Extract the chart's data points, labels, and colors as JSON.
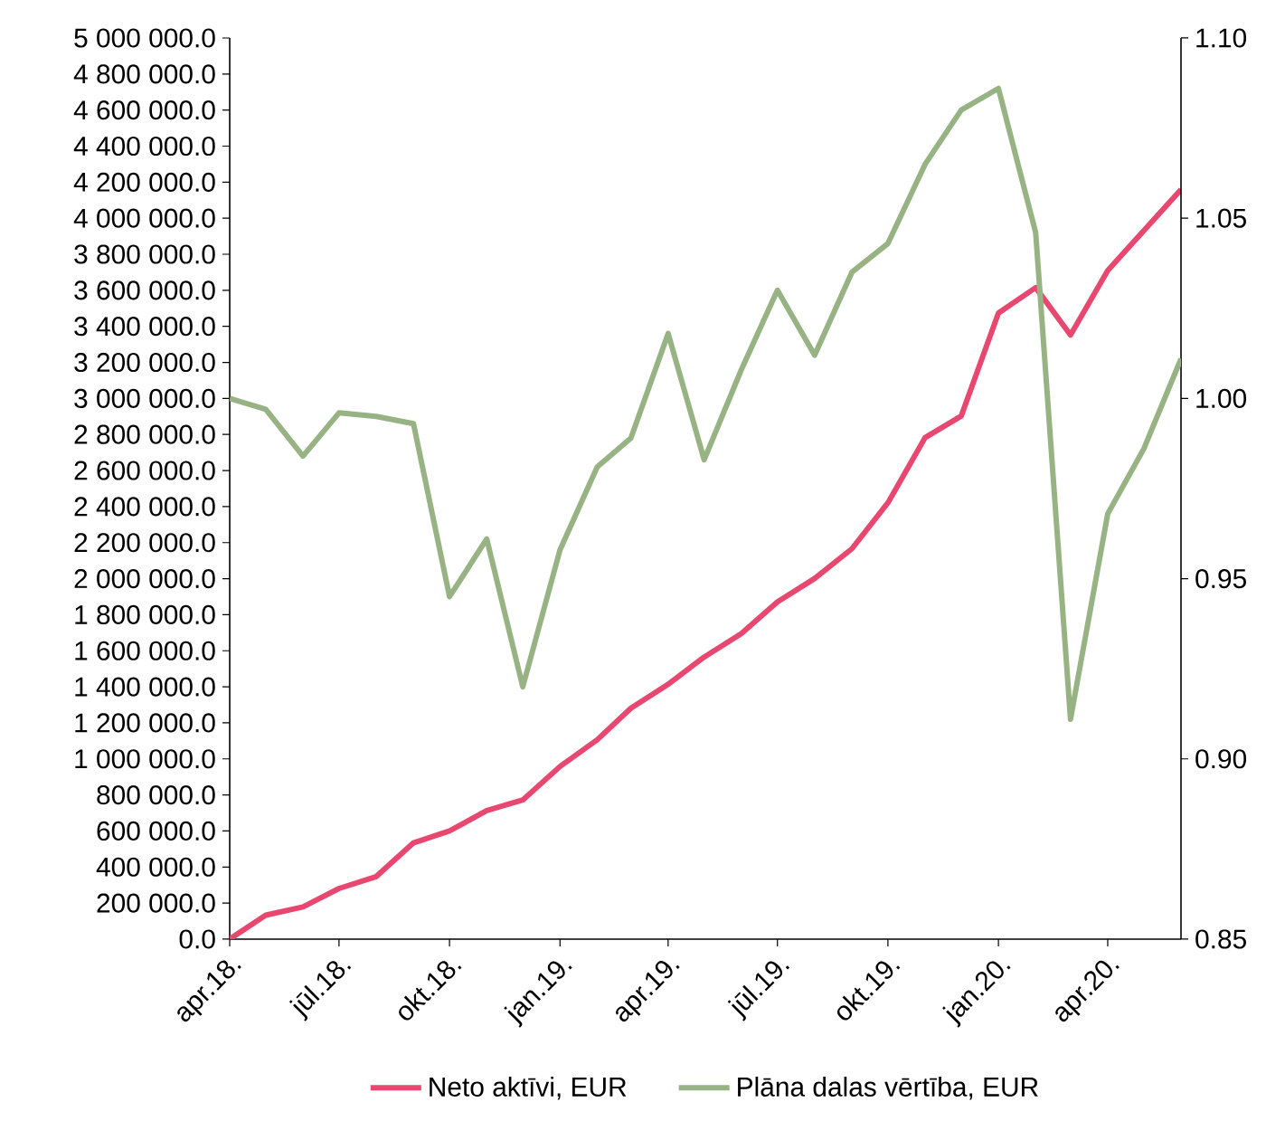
{
  "chart_data": {
    "type": "line",
    "x": [
      "2018-04",
      "2018-05",
      "2018-06",
      "2018-07",
      "2018-08",
      "2018-09",
      "2018-10",
      "2018-11",
      "2018-12",
      "2019-01",
      "2019-02",
      "2019-03",
      "2019-04",
      "2019-05",
      "2019-06",
      "2019-07",
      "2019-08",
      "2019-09",
      "2019-10",
      "2019-11",
      "2019-12",
      "2020-01",
      "2020-02",
      "2020-03",
      "2020-04",
      "2020-05",
      "2020-06"
    ],
    "series": [
      {
        "name": "Neto aktīvi, EUR",
        "color": "#e8476f",
        "values": [
          0,
          133000,
          179000,
          281000,
          347000,
          534000,
          600000,
          713000,
          772000,
          958000,
          1106000,
          1281000,
          1414000,
          1565000,
          1695000,
          1871000,
          2001000,
          2166000,
          2421000,
          2783000,
          2902000,
          3474000,
          3615000,
          3352000,
          3710000,
          3931000,
          4159000
        ]
      },
      {
        "name": "Plāna dalas vērtība, EUR",
        "color": "#98b383",
        "axis": "y2",
        "values": [
          1.0,
          0.997,
          0.984,
          0.996,
          0.995,
          0.993,
          0.945,
          0.961,
          0.92,
          0.958,
          0.981,
          0.989,
          1.018,
          0.983,
          1.008,
          1.03,
          1.012,
          1.035,
          1.043,
          1.065,
          1.08,
          1.086,
          1.046,
          0.911,
          0.968,
          0.986,
          1.011
        ]
      }
    ],
    "xlim": [
      "2018-04",
      "2020-06"
    ],
    "xticks": [
      {
        "value": "2018-04",
        "label": "apr.18."
      },
      {
        "value": "2018-07",
        "label": "jūl.18."
      },
      {
        "value": "2018-10",
        "label": "okt.18."
      },
      {
        "value": "2019-01",
        "label": "jan.19."
      },
      {
        "value": "2019-04",
        "label": "apr.19."
      },
      {
        "value": "2019-07",
        "label": "jūl.19."
      },
      {
        "value": "2019-10",
        "label": "okt.19."
      },
      {
        "value": "2020-01",
        "label": "jan.20."
      },
      {
        "value": "2020-04",
        "label": "apr.20."
      }
    ],
    "ylim": [
      0,
      5000000
    ],
    "yticks": [
      {
        "value": 0,
        "label": "0.0"
      },
      {
        "value": 200000,
        "label": "200 000.0"
      },
      {
        "value": 400000,
        "label": "400 000.0"
      },
      {
        "value": 600000,
        "label": "600 000.0"
      },
      {
        "value": 800000,
        "label": "800 000.0"
      },
      {
        "value": 1000000,
        "label": "1 000 000.0"
      },
      {
        "value": 1200000,
        "label": "1 200 000.0"
      },
      {
        "value": 1400000,
        "label": "1 400 000.0"
      },
      {
        "value": 1600000,
        "label": "1 600 000.0"
      },
      {
        "value": 1800000,
        "label": "1 800 000.0"
      },
      {
        "value": 2000000,
        "label": "2 000 000.0"
      },
      {
        "value": 2200000,
        "label": "2 200 000.0"
      },
      {
        "value": 2400000,
        "label": "2 400 000.0"
      },
      {
        "value": 2600000,
        "label": "2 600 000.0"
      },
      {
        "value": 2800000,
        "label": "2 800 000.0"
      },
      {
        "value": 3000000,
        "label": "3 000 000.0"
      },
      {
        "value": 3200000,
        "label": "3 200 000.0"
      },
      {
        "value": 3400000,
        "label": "3 400 000.0"
      },
      {
        "value": 3600000,
        "label": "3 600 000.0"
      },
      {
        "value": 3800000,
        "label": "3 800 000.0"
      },
      {
        "value": 4000000,
        "label": "4 000 000.0"
      },
      {
        "value": 4200000,
        "label": "4 200 000.0"
      },
      {
        "value": 4400000,
        "label": "4 400 000.0"
      },
      {
        "value": 4600000,
        "label": "4 600 000.0"
      },
      {
        "value": 4800000,
        "label": "4 800 000.0"
      },
      {
        "value": 5000000,
        "label": "5 000 000.0"
      }
    ],
    "y2lim": [
      0.85,
      1.1
    ],
    "y2ticks": [
      {
        "value": 0.85,
        "label": "0.85"
      },
      {
        "value": 0.9,
        "label": "0.90"
      },
      {
        "value": 0.95,
        "label": "0.95"
      },
      {
        "value": 1.0,
        "label": "1.00"
      },
      {
        "value": 1.05,
        "label": "1.05"
      },
      {
        "value": 1.1,
        "label": "1.10"
      }
    ],
    "legend": "bottom"
  }
}
